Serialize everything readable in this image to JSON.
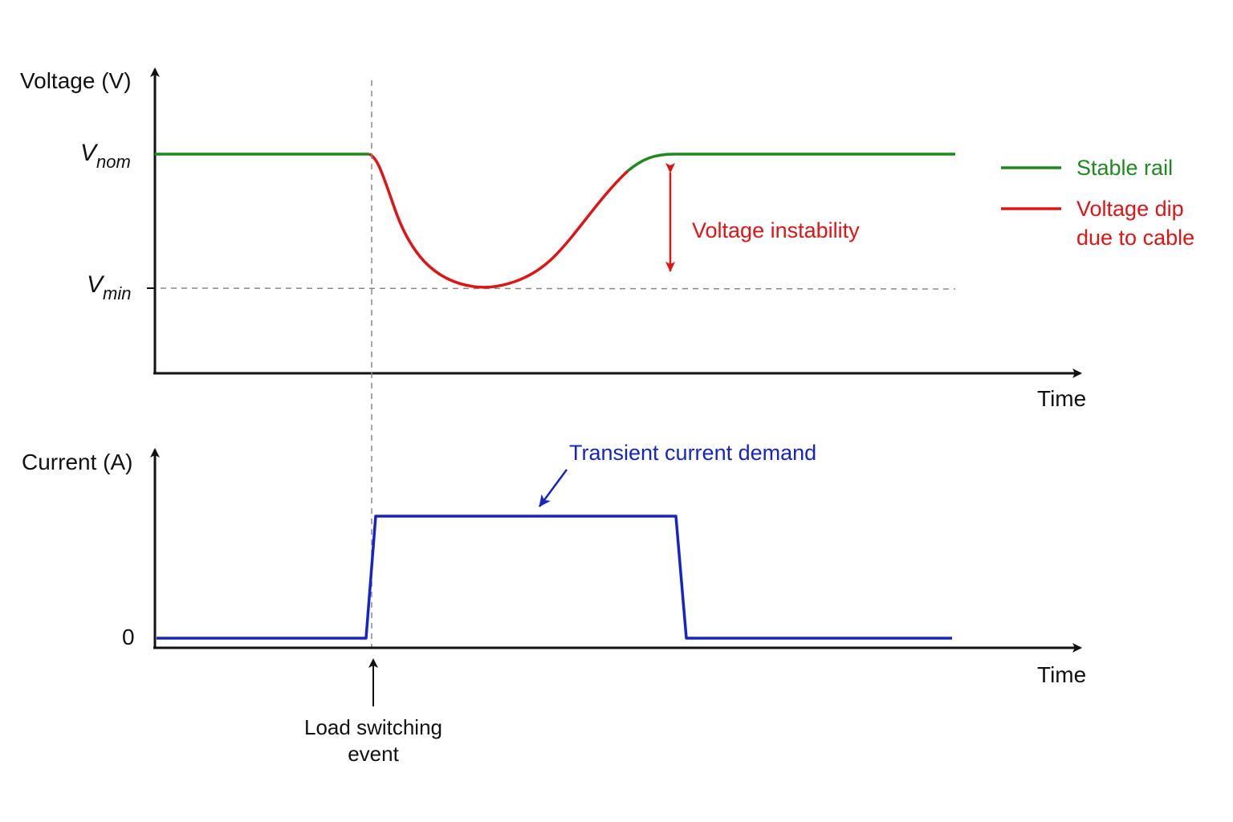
{
  "voltage_panel": {
    "y_axis_title": "Voltage (V)",
    "x_axis_title": "Time",
    "vnom_label": {
      "main": "V",
      "sub": "nom"
    },
    "vmin_label": {
      "main": "V",
      "sub": "min"
    },
    "instability_label": "Voltage instability"
  },
  "current_panel": {
    "y_axis_title": "Current (A)",
    "x_axis_title": "Time",
    "zero_label": "0",
    "demand_label": "Transient current demand"
  },
  "event": {
    "label_line1": "Load switching",
    "label_line2": "event"
  },
  "legend": {
    "items": [
      {
        "lines": [
          "Stable rail"
        ],
        "color": "#1e8a1e"
      },
      {
        "lines": [
          "Voltage dip",
          "due to cable"
        ],
        "color": "#e01414"
      }
    ]
  },
  "colors": {
    "stable": "#1e8a1e",
    "dip": "#e01414",
    "current": "#1424c8",
    "axis": "#111111",
    "guide": "#888888"
  }
}
